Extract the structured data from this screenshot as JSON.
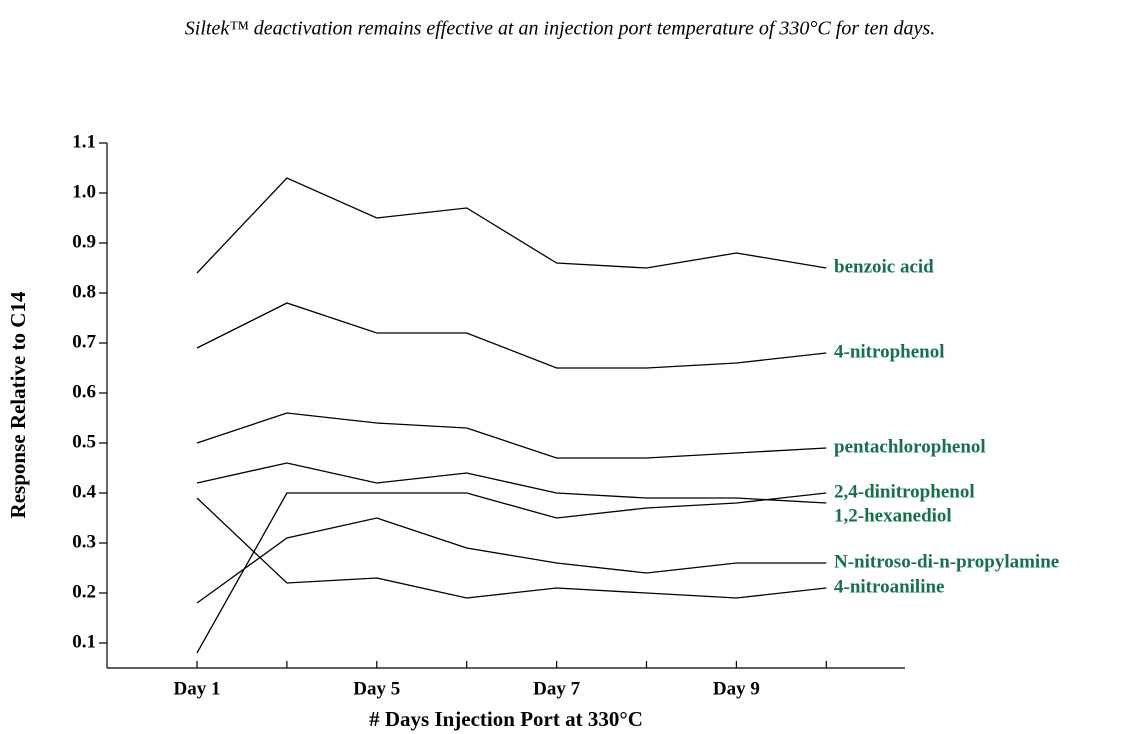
{
  "chart_data": {
    "type": "line",
    "title": "Siltek™ deactivation remains effective at an injection port temperature of 330°C for ten days.",
    "x_label": "# Days Injection Port at 330°C",
    "y_label": "Response Relative to C14",
    "categories": [
      "Day 1",
      null,
      "Day 5",
      null,
      "Day 7",
      null,
      "Day 9",
      null
    ],
    "ylim": [
      0.05,
      1.1
    ],
    "yticks": [
      0.1,
      0.2,
      0.3,
      0.4,
      0.5,
      0.6,
      0.7,
      0.8,
      0.9,
      {
        "value": 1,
        "label": "1.0"
      },
      1.1
    ],
    "label_color": "#17704a",
    "series": [
      {
        "name": "benzoic acid",
        "color": "#000000",
        "values": [
          0.84,
          1.03,
          0.95,
          0.97,
          0.86,
          0.85,
          0.88,
          0.85
        ]
      },
      {
        "name": "4-nitrophenol",
        "color": "#000000",
        "values": [
          0.69,
          0.78,
          0.72,
          0.72,
          0.65,
          0.65,
          0.66,
          0.68
        ]
      },
      {
        "name": "pentachlorophenol",
        "color": "#000000",
        "values": [
          0.5,
          0.56,
          0.54,
          0.53,
          0.47,
          0.47,
          0.48,
          0.49
        ]
      },
      {
        "name": "2,4-dinitrophenol",
        "color": "#000000",
        "values": [
          0.08,
          0.4,
          0.4,
          0.4,
          0.35,
          0.37,
          0.38,
          0.4
        ]
      },
      {
        "name": "1,2-hexanediol",
        "color": "#000000",
        "values": [
          0.42,
          0.46,
          0.42,
          0.44,
          0.4,
          0.39,
          0.39,
          0.38
        ]
      },
      {
        "name": "N-nitroso-di-n-propylamine",
        "color": "#000000",
        "values": [
          0.18,
          0.31,
          0.35,
          0.29,
          0.26,
          0.24,
          0.26,
          0.26
        ]
      },
      {
        "name": "4-nitroaniline",
        "color": "#000000",
        "values": [
          0.39,
          0.22,
          0.23,
          0.19,
          0.21,
          0.2,
          0.19,
          0.21
        ]
      }
    ]
  }
}
